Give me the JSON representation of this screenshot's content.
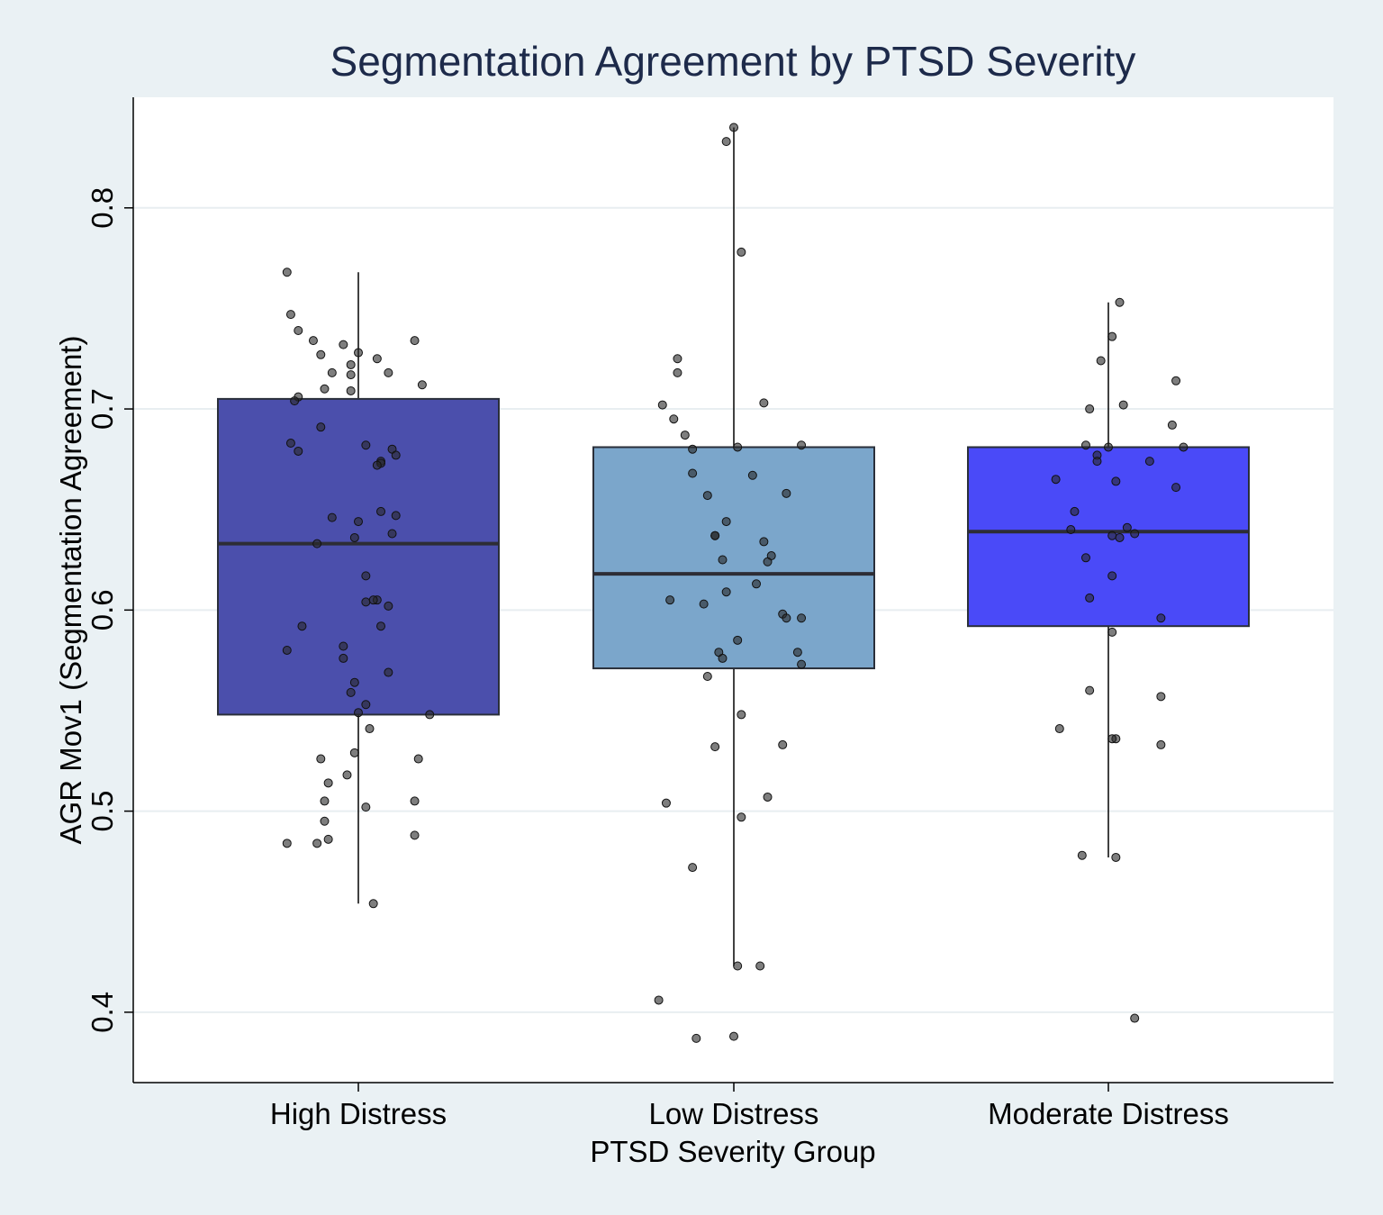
{
  "chart_data": {
    "type": "box",
    "title": "Segmentation Agreement by PTSD Severity",
    "xlabel": "PTSD Severity Group",
    "ylabel": "AGR Mov1 (Segmentation Agreement)",
    "ylim": [
      0.365,
      0.855
    ],
    "yticks": [
      0.4,
      0.5,
      0.6,
      0.7,
      0.8
    ],
    "ytick_labels": [
      "0.4",
      "0.5",
      "0.6",
      "0.7",
      "0.8"
    ],
    "grid": true,
    "categories": [
      "High Distress",
      "Low Distress",
      "Moderate Distress"
    ],
    "boxes": [
      {
        "category": "High Distress",
        "color": "#4b4fac",
        "whisker_low": 0.454,
        "q1": 0.548,
        "median": 0.633,
        "q3": 0.705,
        "whisker_high": 0.768
      },
      {
        "category": "Low Distress",
        "color": "#7ba6cb",
        "whisker_low": 0.423,
        "q1": 0.571,
        "median": 0.618,
        "q3": 0.681,
        "whisker_high": 0.84
      },
      {
        "category": "Moderate Distress",
        "color": "#4a4af8",
        "whisker_low": 0.477,
        "q1": 0.592,
        "median": 0.639,
        "q3": 0.681,
        "whisker_high": 0.753
      }
    ],
    "points": [
      {
        "category": "High Distress",
        "jitter": [
          -0.19,
          -0.18,
          -0.16,
          -0.12,
          -0.04,
          0.0,
          0.15,
          -0.1,
          0.05,
          -0.02,
          0.08,
          -0.07,
          -0.02,
          0.17,
          -0.09,
          -0.02,
          -0.16,
          -0.17,
          -0.1,
          0.02,
          0.09,
          -0.16,
          0.1,
          0.06,
          -0.18,
          0.06,
          0.05,
          0.06,
          0.1,
          -0.07,
          0.0,
          0.09,
          -0.01,
          -0.11,
          0.02,
          0.05,
          0.02,
          0.08,
          0.04,
          0.06,
          -0.15,
          -0.04,
          -0.19,
          -0.04,
          0.08,
          -0.01,
          -0.02,
          0.02,
          0.0,
          0.19,
          0.03,
          -0.01,
          -0.1,
          0.16,
          -0.03,
          -0.08,
          0.15,
          -0.09,
          0.02
        ],
        "values": [
          0.768,
          0.747,
          0.739,
          0.734,
          0.732,
          0.728,
          0.734,
          0.727,
          0.725,
          0.722,
          0.718,
          0.718,
          0.717,
          0.712,
          0.71,
          0.709,
          0.706,
          0.704,
          0.691,
          0.682,
          0.68,
          0.679,
          0.677,
          0.674,
          0.683,
          0.673,
          0.672,
          0.649,
          0.647,
          0.646,
          0.644,
          0.638,
          0.636,
          0.633,
          0.617,
          0.605,
          0.604,
          0.602,
          0.605,
          0.592,
          0.592,
          0.582,
          0.58,
          0.576,
          0.569,
          0.564,
          0.559,
          0.553,
          0.549,
          0.548,
          0.541,
          0.529,
          0.526,
          0.526,
          0.518,
          0.514,
          0.505,
          0.505,
          0.502
        ]
      },
      {
        "category": "Low Distress",
        "jitter": [
          0.0,
          -0.02,
          0.02,
          -0.15,
          -0.15,
          -0.19,
          -0.16,
          0.08,
          -0.13,
          -0.11,
          0.18,
          0.05,
          -0.11,
          0.01,
          -0.07,
          0.14,
          -0.02,
          -0.05,
          0.08,
          -0.05,
          -0.03,
          0.1,
          0.09,
          0.06,
          -0.02,
          -0.17,
          -0.08,
          0.13,
          0.14,
          0.18,
          0.01,
          0.17,
          -0.04,
          -0.03,
          0.18,
          -0.07,
          0.02,
          0.13,
          -0.05,
          0.09,
          -0.18,
          0.02,
          -0.11,
          0.01
        ],
        "values": [
          0.84,
          0.833,
          0.778,
          0.725,
          0.718,
          0.702,
          0.695,
          0.703,
          0.687,
          0.68,
          0.682,
          0.667,
          0.668,
          0.681,
          0.657,
          0.658,
          0.644,
          0.637,
          0.634,
          0.637,
          0.625,
          0.627,
          0.624,
          0.613,
          0.609,
          0.605,
          0.603,
          0.598,
          0.596,
          0.596,
          0.585,
          0.579,
          0.579,
          0.576,
          0.573,
          0.567,
          0.548,
          0.533,
          0.532,
          0.507,
          0.504,
          0.497,
          0.472,
          0.423
        ]
      },
      {
        "category": "Moderate Distress",
        "jitter": [
          0.03,
          0.01,
          -0.02,
          0.18,
          0.04,
          -0.05,
          0.17,
          0.2,
          0.0,
          -0.06,
          -0.03,
          0.11,
          -0.03,
          -0.14,
          0.02,
          0.18,
          -0.09,
          0.07,
          0.05,
          -0.1,
          0.01,
          0.03,
          -0.06,
          0.01,
          -0.05,
          0.14,
          0.01,
          -0.05,
          0.14,
          -0.13,
          0.02,
          0.01,
          0.14,
          -0.07
        ],
        "values": [
          0.753,
          0.736,
          0.724,
          0.714,
          0.702,
          0.7,
          0.692,
          0.681,
          0.681,
          0.682,
          0.677,
          0.674,
          0.674,
          0.665,
          0.664,
          0.661,
          0.649,
          0.638,
          0.641,
          0.64,
          0.637,
          0.636,
          0.626,
          0.617,
          0.606,
          0.596,
          0.589,
          0.56,
          0.557,
          0.541,
          0.536,
          0.536,
          0.533,
          0.478
        ]
      }
    ],
    "outliers": [
      {
        "category": "High Distress",
        "jitter": [
          0.04,
          -0.11,
          -0.19,
          -0.08,
          -0.09,
          0.15
        ],
        "values": [
          0.454,
          0.484,
          0.484,
          0.486,
          0.495,
          0.488
        ]
      },
      {
        "category": "Low Distress",
        "jitter": [
          -0.2,
          -0.1,
          0.0,
          0.07
        ],
        "values": [
          0.406,
          0.387,
          0.388,
          0.423
        ]
      },
      {
        "category": "Moderate Distress",
        "jitter": [
          0.07,
          0.02
        ],
        "values": [
          0.397,
          0.477
        ]
      }
    ]
  }
}
